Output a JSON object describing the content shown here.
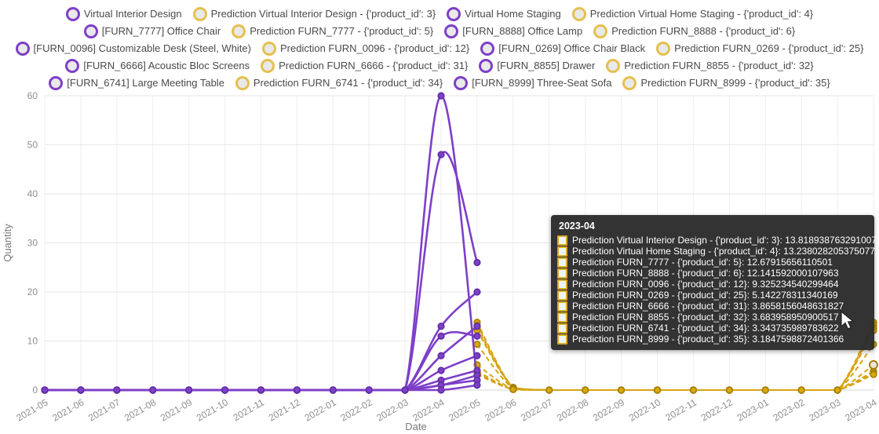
{
  "legend": {
    "items": [
      {
        "label": "Virtual Interior Design",
        "kind": "actual"
      },
      {
        "label": "Prediction Virtual Interior Design - {'product_id': 3}",
        "kind": "prediction"
      },
      {
        "label": "Virtual Home Staging",
        "kind": "actual"
      },
      {
        "label": "Prediction Virtual Home Staging - {'product_id': 4}",
        "kind": "prediction"
      },
      {
        "label": "[FURN_7777] Office Chair",
        "kind": "actual"
      },
      {
        "label": "Prediction FURN_7777 - {'product_id': 5}",
        "kind": "prediction"
      },
      {
        "label": "[FURN_8888] Office Lamp",
        "kind": "actual"
      },
      {
        "label": "Prediction FURN_8888 - {'product_id': 6}",
        "kind": "prediction"
      },
      {
        "label": "[FURN_0096] Customizable Desk (Steel, White)",
        "kind": "actual"
      },
      {
        "label": "Prediction FURN_0096 - {'product_id': 12}",
        "kind": "prediction"
      },
      {
        "label": "[FURN_0269] Office Chair Black",
        "kind": "actual"
      },
      {
        "label": "Prediction FURN_0269 - {'product_id': 25}",
        "kind": "prediction"
      },
      {
        "label": "[FURN_6666] Acoustic Bloc Screens",
        "kind": "actual"
      },
      {
        "label": "Prediction FURN_6666 - {'product_id': 31}",
        "kind": "prediction"
      },
      {
        "label": "[FURN_8855] Drawer",
        "kind": "actual"
      },
      {
        "label": "Prediction FURN_8855 - {'product_id': 32}",
        "kind": "prediction"
      },
      {
        "label": "[FURN_6741] Large Meeting Table",
        "kind": "actual"
      },
      {
        "label": "Prediction FURN_6741 - {'product_id': 34}",
        "kind": "prediction"
      },
      {
        "label": "[FURN_8999] Three-Seat Sofa",
        "kind": "actual"
      },
      {
        "label": "Prediction FURN_8999 - {'product_id': 35}",
        "kind": "prediction"
      }
    ]
  },
  "tooltip": {
    "title": "2023-04",
    "rows": [
      "Prediction Virtual Interior Design - {'product_id': 3}: 13.818938763291007",
      "Prediction Virtual Home Staging - {'product_id': 4}: 13.238028205375077",
      "Prediction FURN_7777 - {'product_id': 5}: 12.67915656110501",
      "Prediction FURN_8888 - {'product_id': 6}: 12.141592000107963",
      "Prediction FURN_0096 - {'product_id': 12}: 9.325234540299464",
      "Prediction FURN_0269 - {'product_id': 25}: 5.142278311340169",
      "Prediction FURN_6666 - {'product_id': 31}: 3.8658156048631827",
      "Prediction FURN_8855 - {'product_id': 32}: 3.683958950900517",
      "Prediction FURN_6741 - {'product_id': 34}: 3.343735989783622",
      "Prediction FURN_8999 - {'product_id': 35}: 3.1847598872401366"
    ]
  },
  "colors": {
    "actual_line": "#7e3fc8",
    "actual_marker_stroke": "#5f2ea6",
    "prediction_line": "#d6a515",
    "prediction_marker_fill": "#d9a907",
    "prediction_marker_stroke": "#a87f06",
    "prediction_legend_ring": "#e5c04f",
    "grid": "#e7e7e7",
    "axis_text": "#8f8f8f"
  },
  "chart_data": {
    "type": "line",
    "xlabel": "Date",
    "ylabel": "Quantity",
    "ylim": [
      0,
      60
    ],
    "yticks": [
      0,
      10,
      20,
      30,
      40,
      50,
      60
    ],
    "grid": true,
    "legend_position": "top",
    "x": [
      "2021-05",
      "2021-06",
      "2021-07",
      "2021-08",
      "2021-09",
      "2021-10",
      "2021-11",
      "2021-12",
      "2022-01",
      "2022-02",
      "2022-03",
      "2022-04",
      "2022-05",
      "2022-06",
      "2022-07",
      "2022-08",
      "2022-09",
      "2022-10",
      "2022-11",
      "2022-12",
      "2023-01",
      "2023-02",
      "2023-03",
      "2023-04"
    ],
    "hover_point": {
      "x": "2023-04",
      "y": 5.142278311340169
    },
    "series": [
      {
        "name": "Virtual Interior Design",
        "role": "actual",
        "values": [
          0,
          0,
          0,
          0,
          0,
          0,
          0,
          0,
          0,
          0,
          0,
          60,
          2,
          null,
          null,
          null,
          null,
          null,
          null,
          null,
          null,
          null,
          null,
          null
        ]
      },
      {
        "name": "Prediction Virtual Interior Design - {'product_id': 3}",
        "role": "prediction",
        "values": [
          null,
          null,
          null,
          null,
          null,
          null,
          null,
          null,
          null,
          null,
          null,
          null,
          13.82,
          0.55,
          0,
          0,
          0,
          0,
          0,
          0,
          0,
          0,
          0,
          13.818938763291007
        ]
      },
      {
        "name": "Virtual Home Staging",
        "role": "actual",
        "values": [
          0,
          0,
          0,
          0,
          0,
          0,
          0,
          0,
          0,
          0,
          0,
          48,
          26,
          null,
          null,
          null,
          null,
          null,
          null,
          null,
          null,
          null,
          null,
          null
        ]
      },
      {
        "name": "Prediction Virtual Home Staging - {'product_id': 4}",
        "role": "prediction",
        "values": [
          null,
          null,
          null,
          null,
          null,
          null,
          null,
          null,
          null,
          null,
          null,
          null,
          13.24,
          0.53,
          0,
          0,
          0,
          0,
          0,
          0,
          0,
          0,
          0,
          13.238028205375077
        ]
      },
      {
        "name": "[FURN_7777] Office Chair",
        "role": "actual",
        "values": [
          0,
          0,
          0,
          0,
          0,
          0,
          0,
          0,
          0,
          0,
          0,
          13,
          20,
          null,
          null,
          null,
          null,
          null,
          null,
          null,
          null,
          null,
          null,
          null
        ]
      },
      {
        "name": "Prediction FURN_7777 - {'product_id': 5}",
        "role": "prediction",
        "values": [
          null,
          null,
          null,
          null,
          null,
          null,
          null,
          null,
          null,
          null,
          null,
          null,
          12.68,
          0.51,
          0,
          0,
          0,
          0,
          0,
          0,
          0,
          0,
          0,
          12.67915656110501
        ]
      },
      {
        "name": "[FURN_8888] Office Lamp",
        "role": "actual",
        "values": [
          0,
          0,
          0,
          0,
          0,
          0,
          0,
          0,
          0,
          0,
          0,
          11,
          11,
          null,
          null,
          null,
          null,
          null,
          null,
          null,
          null,
          null,
          null,
          null
        ]
      },
      {
        "name": "Prediction FURN_8888 - {'product_id': 6}",
        "role": "prediction",
        "values": [
          null,
          null,
          null,
          null,
          null,
          null,
          null,
          null,
          null,
          null,
          null,
          null,
          12.14,
          0.49,
          0,
          0,
          0,
          0,
          0,
          0,
          0,
          0,
          0,
          12.141592000107963
        ]
      },
      {
        "name": "[FURN_0096] Customizable Desk (Steel, White)",
        "role": "actual",
        "values": [
          0,
          0,
          0,
          0,
          0,
          0,
          0,
          0,
          0,
          0,
          0,
          7,
          13,
          null,
          null,
          null,
          null,
          null,
          null,
          null,
          null,
          null,
          null,
          null
        ]
      },
      {
        "name": "Prediction FURN_0096 - {'product_id': 12}",
        "role": "prediction",
        "values": [
          null,
          null,
          null,
          null,
          null,
          null,
          null,
          null,
          null,
          null,
          null,
          null,
          9.33,
          0.37,
          0,
          0,
          0,
          0,
          0,
          0,
          0,
          0,
          0,
          9.325234540299464
        ]
      },
      {
        "name": "[FURN_0269] Office Chair Black",
        "role": "actual",
        "values": [
          0,
          0,
          0,
          0,
          0,
          0,
          0,
          0,
          0,
          0,
          0,
          4,
          7,
          null,
          null,
          null,
          null,
          null,
          null,
          null,
          null,
          null,
          null,
          null
        ]
      },
      {
        "name": "Prediction FURN_0269 - {'product_id': 25}",
        "role": "prediction",
        "values": [
          null,
          null,
          null,
          null,
          null,
          null,
          null,
          null,
          null,
          null,
          null,
          null,
          5.14,
          0.21,
          0,
          0,
          0,
          0,
          0,
          0,
          0,
          0,
          0,
          5.142278311340169
        ]
      },
      {
        "name": "[FURN_6666] Acoustic Bloc Screens",
        "role": "actual",
        "values": [
          0,
          0,
          0,
          0,
          0,
          0,
          0,
          0,
          0,
          0,
          0,
          2,
          4,
          null,
          null,
          null,
          null,
          null,
          null,
          null,
          null,
          null,
          null,
          null
        ]
      },
      {
        "name": "Prediction FURN_6666 - {'product_id': 31}",
        "role": "prediction",
        "values": [
          null,
          null,
          null,
          null,
          null,
          null,
          null,
          null,
          null,
          null,
          null,
          null,
          3.87,
          0.15,
          0,
          0,
          0,
          0,
          0,
          0,
          0,
          0,
          0,
          3.8658156048631827
        ]
      },
      {
        "name": "[FURN_8855] Drawer",
        "role": "actual",
        "values": [
          0,
          0,
          0,
          0,
          0,
          0,
          0,
          0,
          0,
          0,
          0,
          1,
          3,
          null,
          null,
          null,
          null,
          null,
          null,
          null,
          null,
          null,
          null,
          null
        ]
      },
      {
        "name": "Prediction FURN_8855 - {'product_id': 32}",
        "role": "prediction",
        "values": [
          null,
          null,
          null,
          null,
          null,
          null,
          null,
          null,
          null,
          null,
          null,
          null,
          3.68,
          0.15,
          0,
          0,
          0,
          0,
          0,
          0,
          0,
          0,
          0,
          3.683958950900517
        ]
      },
      {
        "name": "[FURN_6741] Large Meeting Table",
        "role": "actual",
        "values": [
          0,
          0,
          0,
          0,
          0,
          0,
          0,
          0,
          0,
          0,
          0,
          1,
          2,
          null,
          null,
          null,
          null,
          null,
          null,
          null,
          null,
          null,
          null,
          null
        ]
      },
      {
        "name": "Prediction FURN_6741 - {'product_id': 34}",
        "role": "prediction",
        "values": [
          null,
          null,
          null,
          null,
          null,
          null,
          null,
          null,
          null,
          null,
          null,
          null,
          3.34,
          0.13,
          0,
          0,
          0,
          0,
          0,
          0,
          0,
          0,
          0,
          3.343735989783622
        ]
      },
      {
        "name": "[FURN_8999] Three-Seat Sofa",
        "role": "actual",
        "values": [
          0,
          0,
          0,
          0,
          0,
          0,
          0,
          0,
          0,
          0,
          0,
          0,
          1,
          null,
          null,
          null,
          null,
          null,
          null,
          null,
          null,
          null,
          null,
          null
        ]
      },
      {
        "name": "Prediction FURN_8999 - {'product_id': 35}",
        "role": "prediction",
        "values": [
          null,
          null,
          null,
          null,
          null,
          null,
          null,
          null,
          null,
          null,
          null,
          null,
          3.18,
          0.13,
          0,
          0,
          0,
          0,
          0,
          0,
          0,
          0,
          0,
          3.1847598872401366
        ]
      }
    ]
  }
}
